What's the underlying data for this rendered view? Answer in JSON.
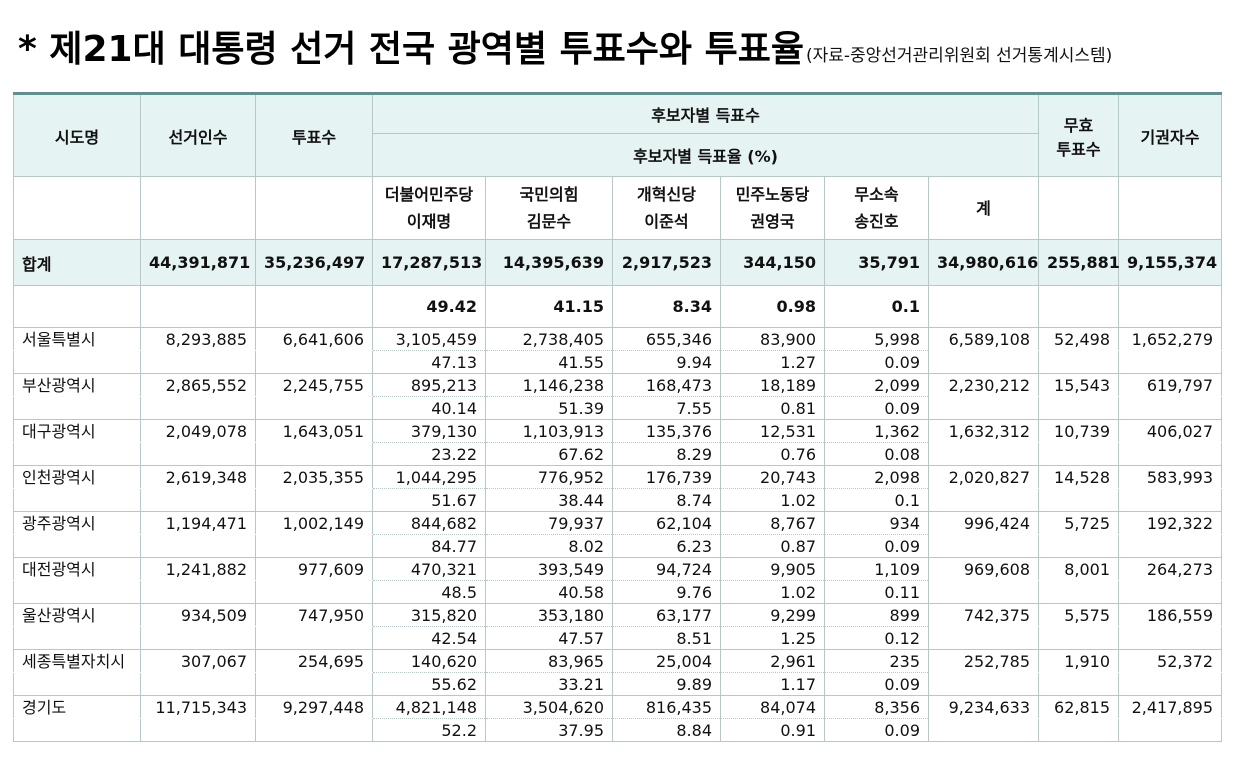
{
  "title": {
    "main": "* 제21대 대통령 선거 전국 광역별 투표수와 투표율",
    "source": "(자료-중앙선거관리위원회 선거통계시스템)"
  },
  "header": {
    "region": "시도명",
    "electors": "선거인수",
    "votes": "투표수",
    "candidate_votes": "후보자별 득표수",
    "candidate_rate": "후보자별 득표율 (%)",
    "invalid_line1": "무효",
    "invalid_line2": "투표수",
    "abstain": "기권자수",
    "sum": "계"
  },
  "parties": [
    {
      "party": "더불어민주당",
      "candidate": "이재명"
    },
    {
      "party": "국민의힘",
      "candidate": "김문수"
    },
    {
      "party": "개혁신당",
      "candidate": "이준석"
    },
    {
      "party": "민주노동당",
      "candidate": "권영국"
    },
    {
      "party": "무소속",
      "candidate": "송진호"
    }
  ],
  "total": {
    "name": "합계",
    "electors": "44,391,871",
    "votes": "35,236,497",
    "cand": [
      "17,287,513",
      "14,395,639",
      "2,917,523",
      "344,150",
      "35,791"
    ],
    "sum": "34,980,616",
    "invalid": "255,881",
    "abstain": "9,155,374",
    "pct": [
      "49.42",
      "41.15",
      "8.34",
      "0.98",
      "0.1"
    ]
  },
  "regions": [
    {
      "name": "서울특별시",
      "electors": "8,293,885",
      "votes": "6,641,606",
      "cand": [
        "3,105,459",
        "2,738,405",
        "655,346",
        "83,900",
        "5,998"
      ],
      "sum": "6,589,108",
      "invalid": "52,498",
      "abstain": "1,652,279",
      "pct": [
        "47.13",
        "41.55",
        "9.94",
        "1.27",
        "0.09"
      ]
    },
    {
      "name": "부산광역시",
      "electors": "2,865,552",
      "votes": "2,245,755",
      "cand": [
        "895,213",
        "1,146,238",
        "168,473",
        "18,189",
        "2,099"
      ],
      "sum": "2,230,212",
      "invalid": "15,543",
      "abstain": "619,797",
      "pct": [
        "40.14",
        "51.39",
        "7.55",
        "0.81",
        "0.09"
      ]
    },
    {
      "name": "대구광역시",
      "electors": "2,049,078",
      "votes": "1,643,051",
      "cand": [
        "379,130",
        "1,103,913",
        "135,376",
        "12,531",
        "1,362"
      ],
      "sum": "1,632,312",
      "invalid": "10,739",
      "abstain": "406,027",
      "pct": [
        "23.22",
        "67.62",
        "8.29",
        "0.76",
        "0.08"
      ]
    },
    {
      "name": "인천광역시",
      "electors": "2,619,348",
      "votes": "2,035,355",
      "cand": [
        "1,044,295",
        "776,952",
        "176,739",
        "20,743",
        "2,098"
      ],
      "sum": "2,020,827",
      "invalid": "14,528",
      "abstain": "583,993",
      "pct": [
        "51.67",
        "38.44",
        "8.74",
        "1.02",
        "0.1"
      ]
    },
    {
      "name": "광주광역시",
      "electors": "1,194,471",
      "votes": "1,002,149",
      "cand": [
        "844,682",
        "79,937",
        "62,104",
        "8,767",
        "934"
      ],
      "sum": "996,424",
      "invalid": "5,725",
      "abstain": "192,322",
      "pct": [
        "84.77",
        "8.02",
        "6.23",
        "0.87",
        "0.09"
      ]
    },
    {
      "name": "대전광역시",
      "electors": "1,241,882",
      "votes": "977,609",
      "cand": [
        "470,321",
        "393,549",
        "94,724",
        "9,905",
        "1,109"
      ],
      "sum": "969,608",
      "invalid": "8,001",
      "abstain": "264,273",
      "pct": [
        "48.5",
        "40.58",
        "9.76",
        "1.02",
        "0.11"
      ]
    },
    {
      "name": "울산광역시",
      "electors": "934,509",
      "votes": "747,950",
      "cand": [
        "315,820",
        "353,180",
        "63,177",
        "9,299",
        "899"
      ],
      "sum": "742,375",
      "invalid": "5,575",
      "abstain": "186,559",
      "pct": [
        "42.54",
        "47.57",
        "8.51",
        "1.25",
        "0.12"
      ]
    },
    {
      "name": "세종특별자치시",
      "electors": "307,067",
      "votes": "254,695",
      "cand": [
        "140,620",
        "83,965",
        "25,004",
        "2,961",
        "235"
      ],
      "sum": "252,785",
      "invalid": "1,910",
      "abstain": "52,372",
      "pct": [
        "55.62",
        "33.21",
        "9.89",
        "1.17",
        "0.09"
      ]
    },
    {
      "name": "경기도",
      "electors": "11,715,343",
      "votes": "9,297,448",
      "cand": [
        "4,821,148",
        "3,504,620",
        "816,435",
        "84,074",
        "8,356"
      ],
      "sum": "9,234,633",
      "invalid": "62,815",
      "abstain": "2,417,895",
      "pct": [
        "52.2",
        "37.95",
        "8.84",
        "0.91",
        "0.09"
      ]
    }
  ]
}
